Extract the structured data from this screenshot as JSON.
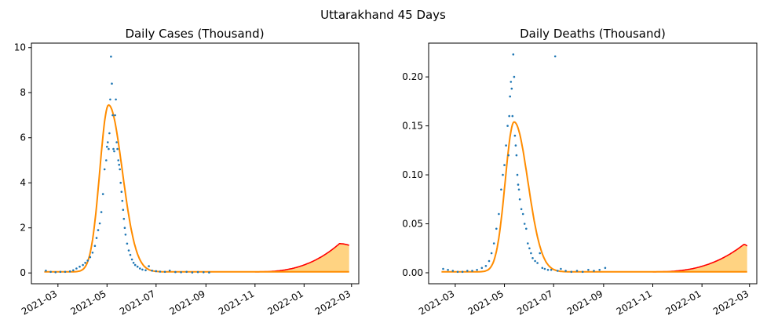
{
  "figure": {
    "title": "Uttarakhand 45 Days"
  },
  "colors": {
    "observed": "#1f77b4",
    "fit": "#ff8c00",
    "forecast": "#ff0000",
    "band": "#ffc04d"
  },
  "chart_data": [
    {
      "type": "scatter",
      "title": "Daily Cases (Thousand)",
      "xlabel": "",
      "ylabel": "",
      "x_range": [
        "2021-01-27",
        "2022-03-10"
      ],
      "ylim": [
        -0.48,
        10.2
      ],
      "x_tick_labels": [
        "2021-03",
        "2021-05",
        "2021-07",
        "2021-09",
        "2021-11",
        "2022-01",
        "2022-03"
      ],
      "y_ticks": [
        0,
        2,
        4,
        6,
        8,
        10
      ],
      "y_tick_labels": [
        "0",
        "2",
        "4",
        "6",
        "8",
        "10"
      ],
      "grid": false,
      "series": [
        {
          "kind": "points",
          "x": [
            "2021-02-14",
            "2021-02-20",
            "2021-02-26",
            "2021-03-04",
            "2021-03-10",
            "2021-03-16",
            "2021-03-20",
            "2021-03-24",
            "2021-03-28",
            "2021-04-01",
            "2021-04-04",
            "2021-04-07",
            "2021-04-10",
            "2021-04-13",
            "2021-04-16",
            "2021-04-18",
            "2021-04-20",
            "2021-04-22",
            "2021-04-24",
            "2021-04-26",
            "2021-04-28",
            "2021-04-30",
            "2021-05-01",
            "2021-05-02",
            "2021-05-03",
            "2021-05-04",
            "2021-05-05",
            "2021-05-06",
            "2021-05-07",
            "2021-05-08",
            "2021-05-09",
            "2021-05-10",
            "2021-05-11",
            "2021-05-12",
            "2021-05-13",
            "2021-05-14",
            "2021-05-15",
            "2021-05-16",
            "2021-05-17",
            "2021-05-18",
            "2021-05-19",
            "2021-05-20",
            "2021-05-21",
            "2021-05-22",
            "2021-05-23",
            "2021-05-24",
            "2021-05-26",
            "2021-05-28",
            "2021-05-30",
            "2021-06-01",
            "2021-06-03",
            "2021-06-05",
            "2021-06-08",
            "2021-06-11",
            "2021-06-14",
            "2021-06-18",
            "2021-06-22",
            "2021-06-26",
            "2021-07-01",
            "2021-07-06",
            "2021-07-12",
            "2021-07-18",
            "2021-07-25",
            "2021-08-01",
            "2021-08-08",
            "2021-08-15",
            "2021-08-22",
            "2021-08-29",
            "2021-09-05"
          ],
          "y": [
            0.1,
            0.05,
            0.03,
            0.05,
            0.05,
            0.07,
            0.12,
            0.2,
            0.28,
            0.35,
            0.45,
            0.55,
            0.7,
            0.9,
            1.2,
            1.55,
            1.9,
            2.2,
            2.7,
            3.5,
            4.6,
            5.0,
            5.6,
            5.8,
            5.5,
            6.2,
            7.7,
            9.6,
            8.4,
            7.0,
            5.5,
            5.4,
            7.0,
            7.7,
            5.8,
            5.5,
            5.0,
            4.8,
            4.6,
            4.0,
            3.6,
            3.2,
            2.8,
            2.4,
            2.0,
            1.7,
            1.3,
            1.0,
            0.8,
            0.6,
            0.45,
            0.35,
            0.28,
            0.2,
            0.15,
            0.12,
            0.3,
            0.1,
            0.08,
            0.06,
            0.05,
            0.1,
            0.04,
            0.03,
            0.05,
            0.02,
            0.04,
            0.03,
            0.02
          ]
        },
        {
          "kind": "fit",
          "baseline": 0.05,
          "peak": 7.45,
          "peak_date": "2021-05-03",
          "rise_width_days": 11,
          "fall_width_days": 17
        },
        {
          "kind": "forecast",
          "start": "2021-11-01",
          "end": "2022-02-26",
          "upper_end": 1.3,
          "upper_peak_date": "2022-02-14",
          "lower_level": 0.05
        }
      ]
    },
    {
      "type": "scatter",
      "title": "Daily Deaths (Thousand)",
      "xlabel": "",
      "ylabel": "",
      "x_range": [
        "2021-01-27",
        "2022-03-10"
      ],
      "ylim": [
        -0.0112,
        0.2345
      ],
      "x_tick_labels": [
        "2021-03",
        "2021-05",
        "2021-07",
        "2021-09",
        "2021-11",
        "2022-01",
        "2022-03"
      ],
      "y_ticks": [
        0,
        0.05,
        0.1,
        0.15,
        0.2
      ],
      "y_tick_labels": [
        "0.00",
        "0.05",
        "0.10",
        "0.15",
        "0.20"
      ],
      "grid": false,
      "series": [
        {
          "kind": "points",
          "x": [
            "2021-02-14",
            "2021-02-20",
            "2021-02-26",
            "2021-03-04",
            "2021-03-10",
            "2021-03-16",
            "2021-03-22",
            "2021-03-28",
            "2021-04-03",
            "2021-04-08",
            "2021-04-12",
            "2021-04-15",
            "2021-04-18",
            "2021-04-21",
            "2021-04-24",
            "2021-04-27",
            "2021-04-29",
            "2021-05-01",
            "2021-05-03",
            "2021-05-05",
            "2021-05-06",
            "2021-05-07",
            "2021-05-08",
            "2021-05-09",
            "2021-05-10",
            "2021-05-11",
            "2021-05-12",
            "2021-05-13",
            "2021-05-14",
            "2021-05-15",
            "2021-05-16",
            "2021-05-17",
            "2021-05-18",
            "2021-05-19",
            "2021-05-20",
            "2021-05-22",
            "2021-05-24",
            "2021-05-26",
            "2021-05-28",
            "2021-05-30",
            "2021-06-01",
            "2021-06-03",
            "2021-06-05",
            "2021-06-08",
            "2021-06-11",
            "2021-06-14",
            "2021-06-17",
            "2021-06-20",
            "2021-06-24",
            "2021-06-28",
            "2021-07-03",
            "2021-07-06",
            "2021-07-10",
            "2021-07-16",
            "2021-07-23",
            "2021-07-30",
            "2021-08-06",
            "2021-08-13",
            "2021-08-20",
            "2021-08-27",
            "2021-09-03"
          ],
          "y": [
            0.004,
            0.003,
            0.002,
            0.001,
            0.001,
            0.002,
            0.002,
            0.003,
            0.005,
            0.007,
            0.012,
            0.02,
            0.03,
            0.045,
            0.06,
            0.085,
            0.1,
            0.11,
            0.13,
            0.15,
            0.12,
            0.16,
            0.18,
            0.195,
            0.188,
            0.16,
            0.223,
            0.2,
            0.14,
            0.13,
            0.12,
            0.1,
            0.09,
            0.085,
            0.075,
            0.065,
            0.06,
            0.05,
            0.045,
            0.03,
            0.025,
            0.02,
            0.015,
            0.012,
            0.01,
            0.02,
            0.005,
            0.004,
            0.003,
            0.003,
            0.221,
            0.002,
            0.004,
            0.002,
            0.001,
            0.002,
            0.001,
            0.003,
            0.002,
            0.003,
            0.005
          ]
        },
        {
          "kind": "fit",
          "baseline": 0.001,
          "peak": 0.154,
          "peak_date": "2021-05-13",
          "rise_width_days": 11,
          "fall_width_days": 17
        },
        {
          "kind": "forecast",
          "start": "2021-11-01",
          "end": "2022-02-26",
          "upper_end": 0.029,
          "upper_peak_date": "2022-02-22",
          "lower_level": 0.001
        }
      ]
    }
  ]
}
